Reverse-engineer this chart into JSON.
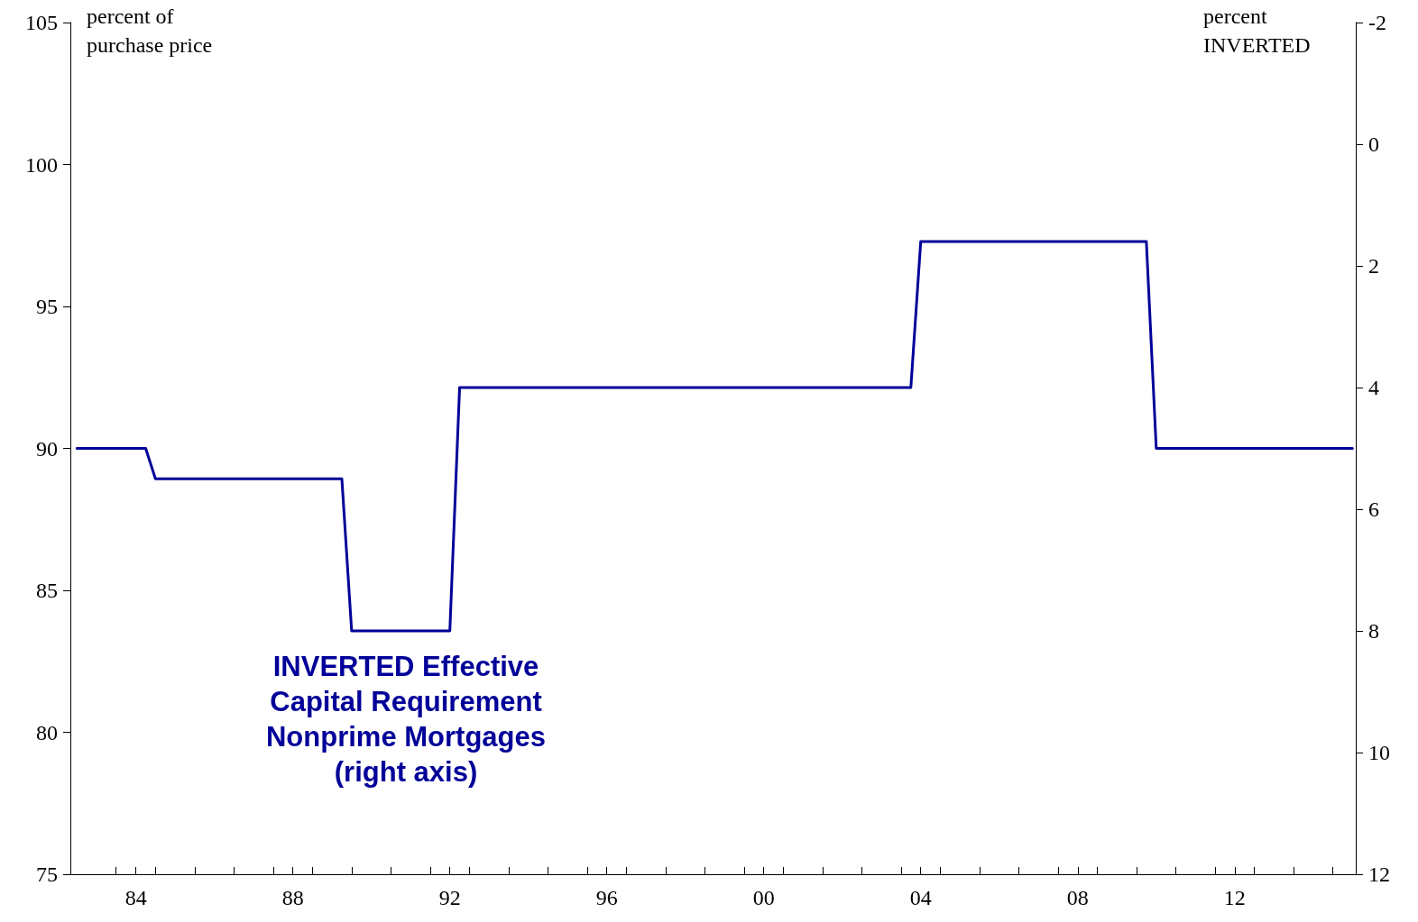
{
  "chart_data": {
    "type": "line",
    "ylabel": "percent of\npurchase price",
    "y2label": "percent\nINVERTED",
    "xlim": [
      "1982-05",
      "2015-02"
    ],
    "xticks": [
      {
        "value": "1983-07",
        "label": null
      },
      {
        "value": "1984",
        "label": "84"
      },
      {
        "value": "1984-07",
        "label": null
      },
      {
        "value": "1985-07",
        "label": null
      },
      {
        "value": "1986-07",
        "label": null
      },
      {
        "value": "1987-07",
        "label": null
      },
      {
        "value": "1988",
        "label": "88"
      },
      {
        "value": "1988-07",
        "label": null
      },
      {
        "value": "1989-07",
        "label": null
      },
      {
        "value": "1990-07",
        "label": null
      },
      {
        "value": "1991-07",
        "label": null
      },
      {
        "value": "1992",
        "label": "92"
      },
      {
        "value": "1992-07",
        "label": null
      },
      {
        "value": "1993-07",
        "label": null
      },
      {
        "value": "1994-07",
        "label": null
      },
      {
        "value": "1995-07",
        "label": null
      },
      {
        "value": "1996",
        "label": "96"
      },
      {
        "value": "1996-07",
        "label": null
      },
      {
        "value": "1997-07",
        "label": null
      },
      {
        "value": "1998-07",
        "label": null
      },
      {
        "value": "1999-07",
        "label": null
      },
      {
        "value": "2000",
        "label": "00"
      },
      {
        "value": "2000-07",
        "label": null
      },
      {
        "value": "2001-07",
        "label": null
      },
      {
        "value": "2002-07",
        "label": null
      },
      {
        "value": "2003-07",
        "label": null
      },
      {
        "value": "2004",
        "label": "04"
      },
      {
        "value": "2004-07",
        "label": null
      },
      {
        "value": "2005-07",
        "label": null
      },
      {
        "value": "2006-07",
        "label": null
      },
      {
        "value": "2007-07",
        "label": null
      },
      {
        "value": "2008",
        "label": "08"
      },
      {
        "value": "2008-07",
        "label": null
      },
      {
        "value": "2009-07",
        "label": null
      },
      {
        "value": "2010-07",
        "label": null
      },
      {
        "value": "2011-07",
        "label": null
      },
      {
        "value": "2012",
        "label": "12"
      },
      {
        "value": "2012-07",
        "label": null
      },
      {
        "value": "2013-07",
        "label": null
      },
      {
        "value": "2014-07",
        "label": null
      }
    ],
    "ylim": [
      75,
      105
    ],
    "yticks": [
      75,
      80,
      85,
      90,
      95,
      100,
      105
    ],
    "y2lim": [
      12,
      -2
    ],
    "y2ticks": [
      -2,
      0,
      2,
      4,
      6,
      8,
      10,
      12
    ],
    "grid": false,
    "line_style": "solid",
    "series": [
      {
        "name": "INVERTED Effective\nCapital Requirement\nNonprime Mortgages\n(right axis)",
        "color": "#000099",
        "axis": "y2",
        "x": [
          "1982-07",
          "1984-04",
          "1984-07",
          "1989-04",
          "1989-07",
          "1992-01",
          "1992-04",
          "2003-10",
          "2004-01",
          "2009-10",
          "2010-01",
          "2015-01"
        ],
        "values": [
          5,
          5,
          5.5,
          5.5,
          8,
          8,
          4,
          4,
          1.6,
          1.6,
          5,
          5
        ]
      }
    ]
  }
}
